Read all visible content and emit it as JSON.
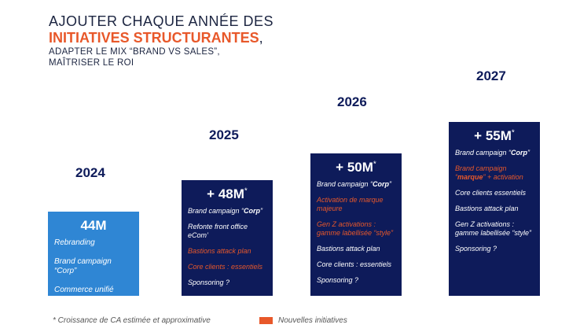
{
  "title": {
    "line1": "AJOUTER CHAQUE ANNÉE DES",
    "line2": "INITIATIVES STRUCTURANTES",
    "comma": ",",
    "line3": "ADAPTER LE MIX “BRAND VS SALES”,",
    "line4": "MAÎTRISER LE ROI"
  },
  "columns": [
    {
      "year": "2024",
      "amount": "44M",
      "asterisk": "",
      "items": [
        {
          "text": "Rebranding"
        },
        {
          "text": "Brand campaign “Corp”"
        },
        {
          "text": "Commerce unifié"
        }
      ]
    },
    {
      "year": "2025",
      "amount": "+ 48M",
      "asterisk": "*",
      "items": [
        {
          "text_a": "Brand campaign “",
          "bold": "Corp",
          "text_b": "”"
        },
        {
          "text": "Refonte front office eCom’"
        },
        {
          "text": "Bastions attack plan",
          "new": true
        },
        {
          "text": "Core clients : essentiels",
          "new": true
        },
        {
          "text": "Sponsoring ?"
        }
      ]
    },
    {
      "year": "2026",
      "amount": "+ 50M",
      "asterisk": "*",
      "items": [
        {
          "text_a": "Brand campaign “",
          "bold": "Corp",
          "text_b": "”"
        },
        {
          "text": "Activation de marque majeure",
          "new": true
        },
        {
          "text": "Gen Z activations : gamme labellisée “style”",
          "new": true
        },
        {
          "text": "Bastions attack plan"
        },
        {
          "text": "Core clients : essentiels"
        },
        {
          "text": "Sponsoring ?"
        }
      ]
    },
    {
      "year": "2027",
      "amount": "+ 55M",
      "asterisk": "*",
      "items": [
        {
          "text_a": "Brand campaign “",
          "bold": "Corp",
          "text_b": "”"
        },
        {
          "text_a": "Brand campaign “",
          "bold": "marque",
          "text_b": "” + activation",
          "new": true
        },
        {
          "text": "Core clients essentiels"
        },
        {
          "text": "Bastions attack plan"
        },
        {
          "text": "Gen Z activations : gamme labellisée “style”"
        },
        {
          "text": "Sponsoring ?"
        }
      ]
    }
  ],
  "footer": {
    "note": "* Croissance de CA estimée et approximative",
    "legend": "Nouvelles initiatives"
  },
  "colors": {
    "navy": "#0e1b5a",
    "blue": "#2f86d4",
    "orange": "#e8582a"
  }
}
